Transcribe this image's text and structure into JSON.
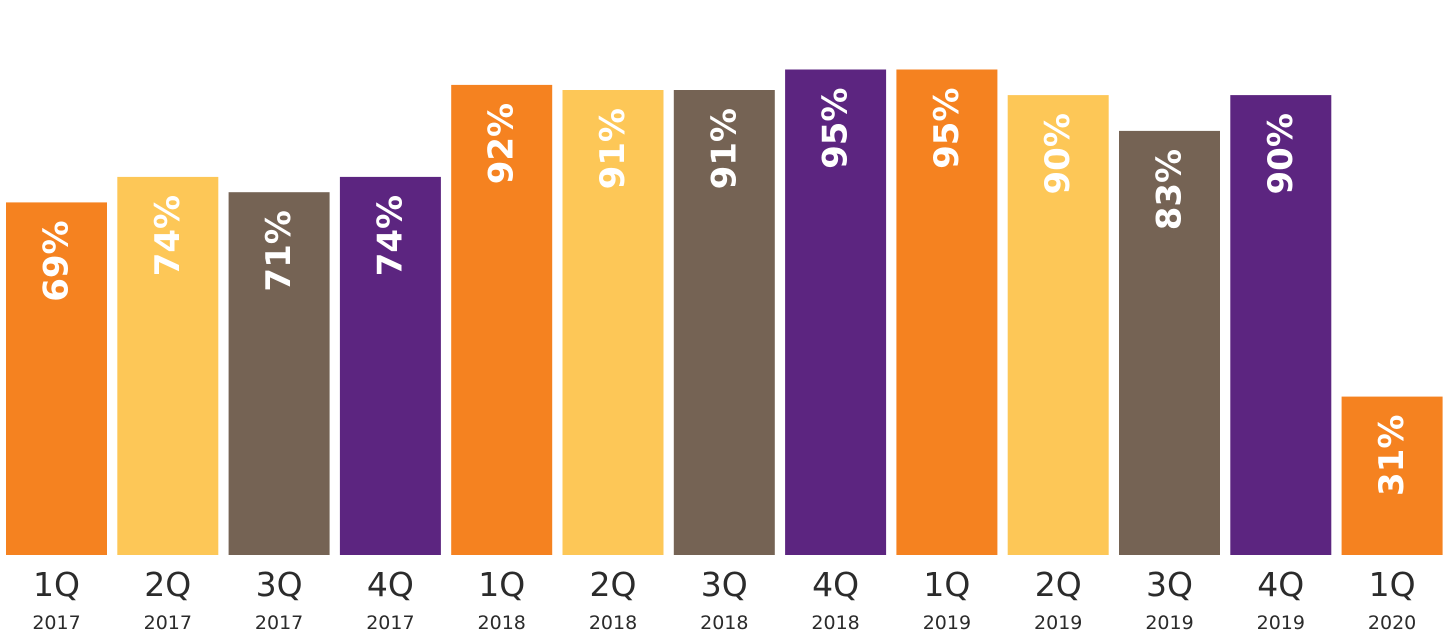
{
  "chart_data": {
    "type": "bar",
    "title": "",
    "xlabel": "",
    "ylabel": "",
    "ylim": [
      0,
      100
    ],
    "grid": false,
    "legend": "none",
    "categories": [
      {
        "quarter": "1Q",
        "year": "2017"
      },
      {
        "quarter": "2Q",
        "year": "2017"
      },
      {
        "quarter": "3Q",
        "year": "2017"
      },
      {
        "quarter": "4Q",
        "year": "2017"
      },
      {
        "quarter": "1Q",
        "year": "2018"
      },
      {
        "quarter": "2Q",
        "year": "2018"
      },
      {
        "quarter": "3Q",
        "year": "2018"
      },
      {
        "quarter": "4Q",
        "year": "2018"
      },
      {
        "quarter": "1Q",
        "year": "2019"
      },
      {
        "quarter": "2Q",
        "year": "2019"
      },
      {
        "quarter": "3Q",
        "year": "2019"
      },
      {
        "quarter": "4Q",
        "year": "2019"
      },
      {
        "quarter": "1Q",
        "year": "2020"
      }
    ],
    "values": [
      69,
      74,
      71,
      74,
      92,
      91,
      91,
      95,
      95,
      90,
      83,
      90,
      31
    ],
    "value_labels": [
      "69%",
      "74%",
      "71%",
      "74%",
      "92%",
      "91%",
      "91%",
      "95%",
      "95%",
      "90%",
      "83%",
      "90%",
      "31%"
    ],
    "colors": {
      "Q1": "#f58220",
      "Q2": "#fdc757",
      "Q3": "#756354",
      "Q4": "#5c2580"
    }
  }
}
